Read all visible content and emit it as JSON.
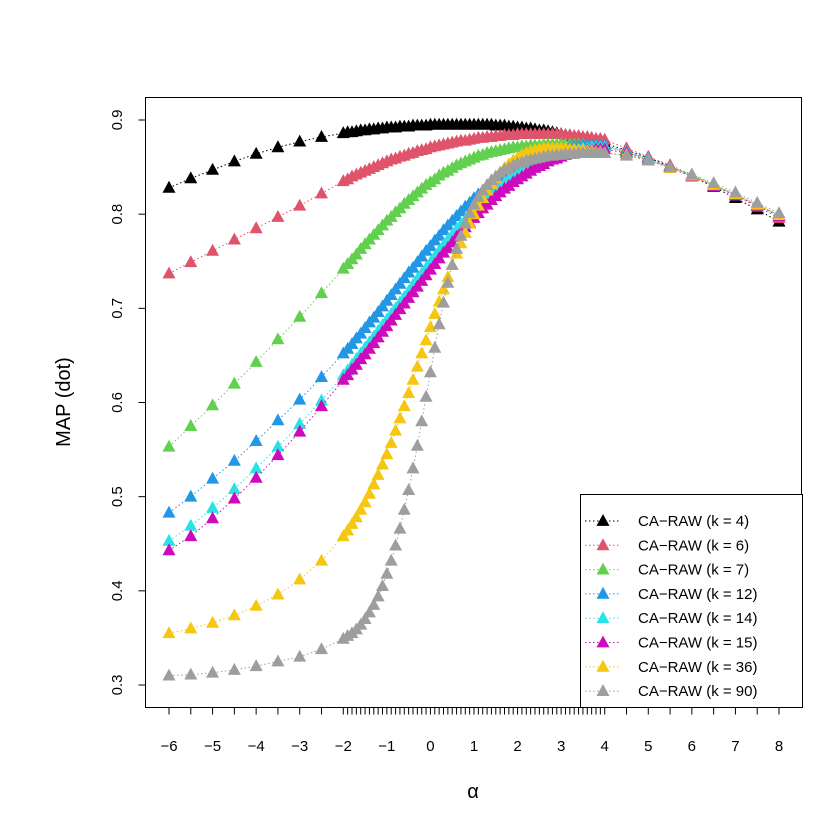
{
  "chart_data": {
    "type": "scatter",
    "title": "",
    "xlabel": "α",
    "ylabel": "MAP (dot)",
    "xlim": [
      -6,
      8
    ],
    "ylim": [
      0.3,
      0.9
    ],
    "x_ticks": [
      -6,
      -5,
      -4,
      -3,
      -2,
      -1,
      0,
      1,
      2,
      3,
      4,
      5,
      6,
      7,
      8
    ],
    "x_tick_labels": [
      "−6",
      "−5",
      "−4",
      "−3",
      "−2",
      "−1",
      "0",
      "1",
      "2",
      "3",
      "4",
      "5",
      "6",
      "7",
      "8"
    ],
    "y_ticks": [
      0.3,
      0.4,
      0.5,
      0.6,
      0.7,
      0.8,
      0.9
    ],
    "y_tick_labels": [
      "0.3",
      "0.4",
      "0.5",
      "0.6",
      "0.7",
      "0.8",
      "0.9"
    ],
    "grid": false,
    "legend_position": "bottom-right",
    "marker": "filled-triangle",
    "line_style": "dotted",
    "x": [
      -6,
      -5.5,
      -5,
      -4.5,
      -4,
      -3.5,
      -3,
      -2.5,
      -2,
      -1.9,
      -1.8,
      -1.7,
      -1.6,
      -1.5,
      -1.4,
      -1.3,
      -1.2,
      -1.1,
      -1,
      -0.9,
      -0.8,
      -0.7,
      -0.6,
      -0.5,
      -0.4,
      -0.3,
      -0.2,
      -0.1,
      0,
      0.1,
      0.2,
      0.3,
      0.4,
      0.5,
      0.6,
      0.7,
      0.8,
      0.9,
      1,
      1.1,
      1.2,
      1.3,
      1.4,
      1.5,
      1.6,
      1.7,
      1.8,
      1.9,
      2,
      2.1,
      2.2,
      2.3,
      2.4,
      2.5,
      2.6,
      2.7,
      2.8,
      2.9,
      3,
      3.1,
      3.2,
      3.3,
      3.4,
      3.5,
      3.6,
      3.7,
      3.8,
      3.9,
      4,
      4.5,
      5,
      5.5,
      6,
      6.5,
      7,
      7.5,
      8
    ],
    "series": [
      {
        "name": "CA−RAW (k = 4)",
        "color": "#000000",
        "values": [
          0.828,
          0.838,
          0.847,
          0.856,
          0.864,
          0.871,
          0.877,
          0.882,
          0.886,
          0.887,
          0.887,
          0.888,
          0.889,
          0.889,
          0.89,
          0.89,
          0.891,
          0.891,
          0.892,
          0.892,
          0.892,
          0.893,
          0.893,
          0.893,
          0.894,
          0.894,
          0.894,
          0.894,
          0.895,
          0.895,
          0.895,
          0.895,
          0.895,
          0.895,
          0.895,
          0.895,
          0.895,
          0.895,
          0.895,
          0.895,
          0.895,
          0.895,
          0.895,
          0.894,
          0.894,
          0.894,
          0.893,
          0.893,
          0.892,
          0.892,
          0.891,
          0.891,
          0.89,
          0.889,
          0.889,
          0.888,
          0.887,
          0.886,
          0.885,
          0.884,
          0.883,
          0.882,
          0.881,
          0.88,
          0.879,
          0.878,
          0.877,
          0.876,
          0.875,
          0.868,
          0.86,
          0.851,
          0.84,
          0.829,
          0.817,
          0.805,
          0.792
        ]
      },
      {
        "name": "CA−RAW (k = 6)",
        "color": "#DF536B",
        "values": [
          0.737,
          0.749,
          0.761,
          0.773,
          0.785,
          0.797,
          0.809,
          0.822,
          0.835,
          0.837,
          0.84,
          0.842,
          0.844,
          0.846,
          0.848,
          0.85,
          0.852,
          0.854,
          0.856,
          0.858,
          0.859,
          0.861,
          0.862,
          0.864,
          0.865,
          0.867,
          0.868,
          0.869,
          0.871,
          0.872,
          0.873,
          0.874,
          0.875,
          0.876,
          0.877,
          0.878,
          0.878,
          0.879,
          0.88,
          0.881,
          0.881,
          0.882,
          0.882,
          0.883,
          0.883,
          0.884,
          0.884,
          0.884,
          0.885,
          0.885,
          0.885,
          0.885,
          0.885,
          0.885,
          0.885,
          0.885,
          0.885,
          0.885,
          0.885,
          0.884,
          0.884,
          0.883,
          0.883,
          0.882,
          0.882,
          0.881,
          0.88,
          0.88,
          0.879,
          0.87,
          0.861,
          0.852,
          0.842,
          0.831,
          0.82,
          0.808,
          0.796
        ]
      },
      {
        "name": "CA−RAW (k = 7)",
        "color": "#61D04F",
        "values": [
          0.553,
          0.575,
          0.597,
          0.62,
          0.643,
          0.667,
          0.691,
          0.716,
          0.742,
          0.747,
          0.752,
          0.757,
          0.763,
          0.768,
          0.773,
          0.778,
          0.783,
          0.788,
          0.793,
          0.797,
          0.802,
          0.806,
          0.811,
          0.815,
          0.819,
          0.823,
          0.827,
          0.831,
          0.834,
          0.837,
          0.841,
          0.844,
          0.846,
          0.849,
          0.852,
          0.854,
          0.856,
          0.858,
          0.86,
          0.862,
          0.863,
          0.865,
          0.866,
          0.867,
          0.868,
          0.869,
          0.87,
          0.871,
          0.871,
          0.872,
          0.872,
          0.873,
          0.873,
          0.873,
          0.874,
          0.874,
          0.874,
          0.874,
          0.874,
          0.874,
          0.874,
          0.874,
          0.874,
          0.874,
          0.873,
          0.873,
          0.873,
          0.873,
          0.872,
          0.866,
          0.858,
          0.85,
          0.841,
          0.831,
          0.821,
          0.81,
          0.799
        ]
      },
      {
        "name": "CA−RAW (k = 12)",
        "color": "#2297E6",
        "values": [
          0.483,
          0.5,
          0.519,
          0.538,
          0.559,
          0.581,
          0.603,
          0.627,
          0.652,
          0.657,
          0.662,
          0.668,
          0.673,
          0.679,
          0.685,
          0.69,
          0.696,
          0.702,
          0.708,
          0.714,
          0.72,
          0.726,
          0.732,
          0.738,
          0.743,
          0.749,
          0.755,
          0.761,
          0.766,
          0.772,
          0.777,
          0.783,
          0.788,
          0.793,
          0.798,
          0.803,
          0.808,
          0.812,
          0.817,
          0.821,
          0.825,
          0.829,
          0.833,
          0.836,
          0.84,
          0.843,
          0.846,
          0.849,
          0.851,
          0.854,
          0.856,
          0.858,
          0.86,
          0.862,
          0.864,
          0.865,
          0.867,
          0.868,
          0.869,
          0.87,
          0.871,
          0.872,
          0.872,
          0.873,
          0.873,
          0.873,
          0.873,
          0.873,
          0.873,
          0.867,
          0.859,
          0.85,
          0.841,
          0.831,
          0.821,
          0.81,
          0.799
        ]
      },
      {
        "name": "CA−RAW (k = 14)",
        "color": "#28E2E5",
        "values": [
          0.453,
          0.469,
          0.488,
          0.508,
          0.53,
          0.553,
          0.577,
          0.602,
          0.629,
          0.634,
          0.64,
          0.646,
          0.652,
          0.658,
          0.664,
          0.67,
          0.676,
          0.682,
          0.688,
          0.694,
          0.7,
          0.706,
          0.712,
          0.718,
          0.725,
          0.731,
          0.737,
          0.743,
          0.749,
          0.755,
          0.761,
          0.767,
          0.773,
          0.778,
          0.784,
          0.789,
          0.794,
          0.799,
          0.804,
          0.809,
          0.813,
          0.818,
          0.822,
          0.826,
          0.83,
          0.833,
          0.837,
          0.84,
          0.843,
          0.846,
          0.849,
          0.852,
          0.854,
          0.856,
          0.858,
          0.86,
          0.862,
          0.864,
          0.865,
          0.866,
          0.867,
          0.868,
          0.869,
          0.87,
          0.87,
          0.871,
          0.871,
          0.871,
          0.871,
          0.866,
          0.858,
          0.849,
          0.84,
          0.83,
          0.82,
          0.809,
          0.798
        ]
      },
      {
        "name": "CA−RAW (k = 15)",
        "color": "#CD0BBC",
        "values": [
          0.443,
          0.458,
          0.477,
          0.498,
          0.52,
          0.544,
          0.569,
          0.596,
          0.624,
          0.629,
          0.635,
          0.64,
          0.646,
          0.651,
          0.657,
          0.663,
          0.669,
          0.675,
          0.681,
          0.687,
          0.693,
          0.699,
          0.705,
          0.711,
          0.717,
          0.723,
          0.729,
          0.735,
          0.741,
          0.747,
          0.753,
          0.759,
          0.764,
          0.77,
          0.776,
          0.781,
          0.786,
          0.791,
          0.796,
          0.801,
          0.806,
          0.81,
          0.815,
          0.819,
          0.823,
          0.827,
          0.83,
          0.834,
          0.837,
          0.84,
          0.843,
          0.846,
          0.849,
          0.851,
          0.853,
          0.856,
          0.858,
          0.859,
          0.861,
          0.863,
          0.864,
          0.865,
          0.866,
          0.867,
          0.868,
          0.868,
          0.869,
          0.869,
          0.869,
          0.865,
          0.857,
          0.849,
          0.84,
          0.83,
          0.82,
          0.809,
          0.798
        ]
      },
      {
        "name": "CA−RAW (k = 36)",
        "color": "#F5C710",
        "values": [
          0.355,
          0.36,
          0.366,
          0.374,
          0.384,
          0.396,
          0.412,
          0.432,
          0.458,
          0.464,
          0.471,
          0.478,
          0.486,
          0.494,
          0.503,
          0.513,
          0.523,
          0.534,
          0.545,
          0.557,
          0.57,
          0.583,
          0.596,
          0.61,
          0.624,
          0.638,
          0.652,
          0.666,
          0.68,
          0.694,
          0.707,
          0.72,
          0.733,
          0.746,
          0.758,
          0.769,
          0.78,
          0.79,
          0.8,
          0.809,
          0.817,
          0.825,
          0.832,
          0.838,
          0.844,
          0.849,
          0.853,
          0.857,
          0.86,
          0.863,
          0.865,
          0.867,
          0.868,
          0.869,
          0.87,
          0.87,
          0.87,
          0.87,
          0.87,
          0.87,
          0.869,
          0.869,
          0.868,
          0.868,
          0.867,
          0.867,
          0.866,
          0.866,
          0.865,
          0.863,
          0.857,
          0.849,
          0.841,
          0.831,
          0.821,
          0.81,
          0.799
        ]
      },
      {
        "name": "CA−RAW (k = 90)",
        "color": "#9E9E9E",
        "values": [
          0.31,
          0.311,
          0.313,
          0.316,
          0.32,
          0.325,
          0.33,
          0.338,
          0.349,
          0.352,
          0.355,
          0.359,
          0.364,
          0.37,
          0.377,
          0.385,
          0.394,
          0.405,
          0.418,
          0.432,
          0.448,
          0.466,
          0.486,
          0.507,
          0.53,
          0.554,
          0.58,
          0.606,
          0.632,
          0.658,
          0.683,
          0.706,
          0.727,
          0.746,
          0.763,
          0.777,
          0.79,
          0.801,
          0.81,
          0.818,
          0.825,
          0.831,
          0.836,
          0.84,
          0.844,
          0.847,
          0.849,
          0.852,
          0.854,
          0.855,
          0.857,
          0.858,
          0.859,
          0.86,
          0.861,
          0.862,
          0.862,
          0.863,
          0.863,
          0.864,
          0.864,
          0.864,
          0.865,
          0.865,
          0.865,
          0.865,
          0.865,
          0.865,
          0.865,
          0.862,
          0.857,
          0.85,
          0.842,
          0.833,
          0.823,
          0.812,
          0.801
        ]
      }
    ]
  }
}
